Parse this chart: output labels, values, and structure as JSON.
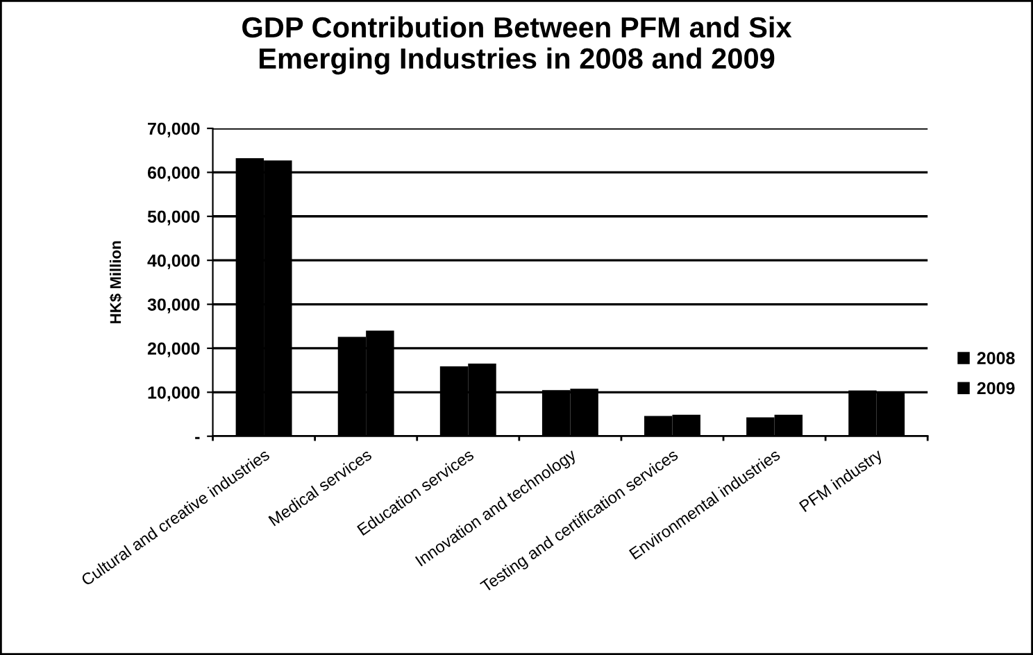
{
  "chart_data": {
    "type": "bar",
    "title": "GDP Contribution Between PFM and Six\nEmerging Industries in 2008 and 2009",
    "ylabel": "HK$ Million",
    "categories": [
      "Cultural and creative industries",
      "Medical services",
      "Education services",
      "Innovation and technology",
      "Testing and certification services",
      "Environmental industries",
      "PFM industry"
    ],
    "series": [
      {
        "name": "2008",
        "color": "#000000",
        "values": [
          63200,
          22600,
          15900,
          10500,
          4600,
          4300,
          10400
        ]
      },
      {
        "name": "2009",
        "color": "#000000",
        "values": [
          62700,
          24000,
          16500,
          10800,
          4900,
          4900,
          10200
        ]
      }
    ],
    "ylim": [
      0,
      70000
    ],
    "yticks": [
      {
        "value": 0,
        "label": "-"
      },
      {
        "value": 10000,
        "label": "10,000"
      },
      {
        "value": 20000,
        "label": "20,000"
      },
      {
        "value": 30000,
        "label": "30,000"
      },
      {
        "value": 40000,
        "label": "40,000"
      },
      {
        "value": 50000,
        "label": "50,000"
      },
      {
        "value": 60000,
        "label": "60,000"
      },
      {
        "value": 70000,
        "label": "70,000"
      }
    ],
    "grid": "y",
    "legend": "right"
  }
}
